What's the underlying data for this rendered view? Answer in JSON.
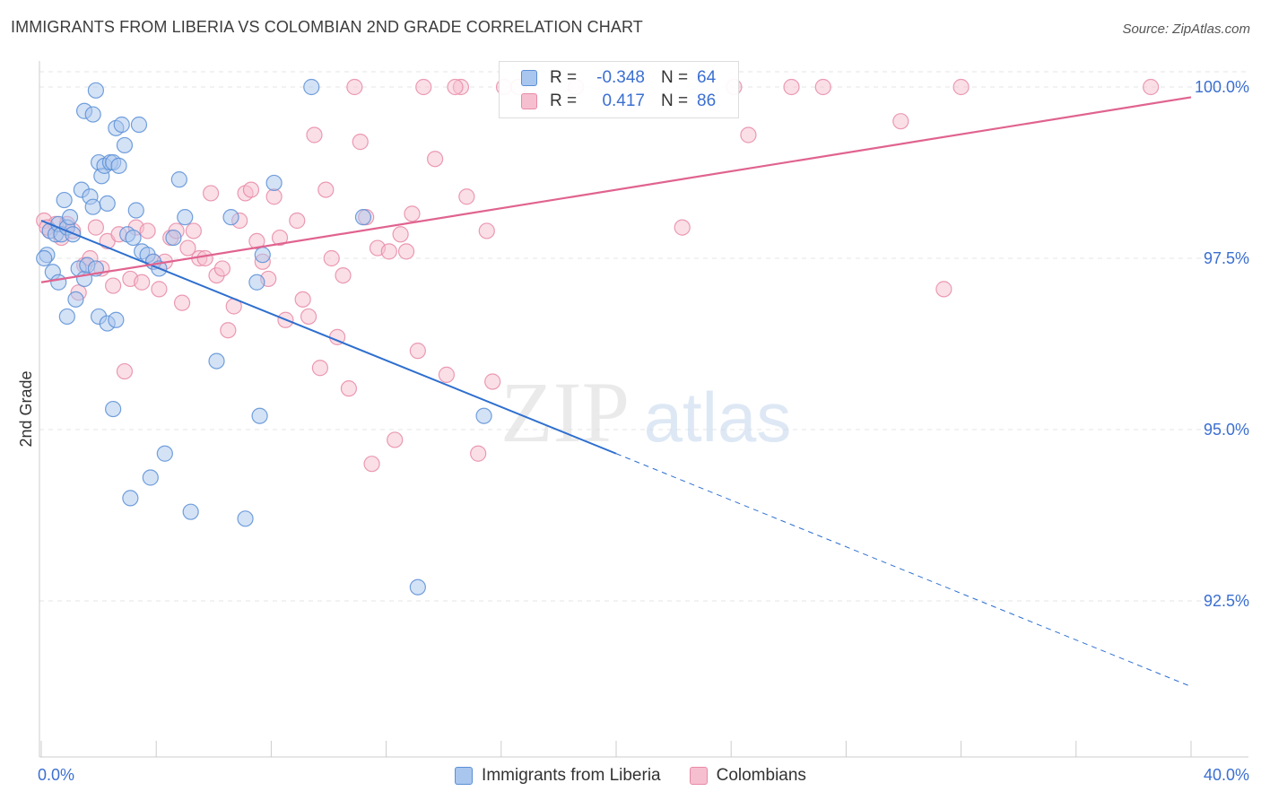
{
  "header": {
    "title": "IMMIGRANTS FROM LIBERIA VS COLOMBIAN 2ND GRADE CORRELATION CHART",
    "source": "Source: ZipAtlas.com"
  },
  "watermark": {
    "zip": "ZIP",
    "atlas": "atlas"
  },
  "colors": {
    "blue_fill": "#a9c6ee",
    "blue_stroke": "#5b8fd6",
    "blue_line": "#2e6fcf",
    "pink_fill": "#f6bfd0",
    "pink_stroke": "#e88aa6",
    "pink_line": "#e0638f",
    "axis_text": "#3b6fd1",
    "grid": "#e6e6e6"
  },
  "legend_top": {
    "rows": [
      {
        "r_label": "R =",
        "r_value": "-0.348",
        "n_label": "N =",
        "n_value": "64"
      },
      {
        "r_label": "R =",
        "r_value": "0.417",
        "n_label": "N =",
        "n_value": "86"
      }
    ]
  },
  "legend_bottom": {
    "items": [
      {
        "label": "Immigrants from Liberia"
      },
      {
        "label": "Colombians"
      }
    ]
  },
  "chart_data": {
    "type": "scatter",
    "title": "IMMIGRANTS FROM LIBERIA VS COLOMBIAN 2ND GRADE CORRELATION CHART",
    "xlabel": "",
    "ylabel": "2nd Grade",
    "xlim": [
      0,
      40
    ],
    "ylim": [
      90.0,
      100.4
    ],
    "x_tick_labels": [
      "0.0%",
      "40.0%"
    ],
    "y_ticks": [
      92.5,
      95.0,
      97.5,
      100.0
    ],
    "y_tick_labels": [
      "92.5%",
      "95.0%",
      "97.5%",
      "100.0%"
    ],
    "grid": "horizontal dashed",
    "legend_position": "top-center and bottom",
    "series": [
      {
        "name": "Immigrants from Liberia",
        "r": -0.348,
        "n": 64,
        "trend": {
          "x0": 0,
          "y0": 98.05,
          "x1": 20.0,
          "y1": 94.65,
          "dash_to_x": 40.0,
          "dash_to_y": 91.25
        },
        "points": [
          [
            0.3,
            97.9
          ],
          [
            0.2,
            97.55
          ],
          [
            0.4,
            97.3
          ],
          [
            0.5,
            97.85
          ],
          [
            0.6,
            98.0
          ],
          [
            0.7,
            97.85
          ],
          [
            0.8,
            98.35
          ],
          [
            0.9,
            97.95
          ],
          [
            1.0,
            98.1
          ],
          [
            1.1,
            97.85
          ],
          [
            0.6,
            97.15
          ],
          [
            0.9,
            96.65
          ],
          [
            1.2,
            96.9
          ],
          [
            1.3,
            97.35
          ],
          [
            1.4,
            98.5
          ],
          [
            1.5,
            97.2
          ],
          [
            1.6,
            97.4
          ],
          [
            1.7,
            98.4
          ],
          [
            1.8,
            98.25
          ],
          [
            1.9,
            97.35
          ],
          [
            1.5,
            99.65
          ],
          [
            1.8,
            99.6
          ],
          [
            1.9,
            99.95
          ],
          [
            2.0,
            98.9
          ],
          [
            2.1,
            98.7
          ],
          [
            2.2,
            98.85
          ],
          [
            2.3,
            98.3
          ],
          [
            2.4,
            98.9
          ],
          [
            2.5,
            98.9
          ],
          [
            2.6,
            99.4
          ],
          [
            2.7,
            98.85
          ],
          [
            2.8,
            99.45
          ],
          [
            2.9,
            99.15
          ],
          [
            3.0,
            97.85
          ],
          [
            3.2,
            97.8
          ],
          [
            3.3,
            98.2
          ],
          [
            3.4,
            99.45
          ],
          [
            3.5,
            97.6
          ],
          [
            3.7,
            97.55
          ],
          [
            3.9,
            97.45
          ],
          [
            4.1,
            97.35
          ],
          [
            4.6,
            97.8
          ],
          [
            4.8,
            98.65
          ],
          [
            5.0,
            98.1
          ],
          [
            2.0,
            96.65
          ],
          [
            2.3,
            96.55
          ],
          [
            2.6,
            96.6
          ],
          [
            2.5,
            95.3
          ],
          [
            3.1,
            94.0
          ],
          [
            3.8,
            94.3
          ],
          [
            4.3,
            94.65
          ],
          [
            5.2,
            93.8
          ],
          [
            6.1,
            96.0
          ],
          [
            6.6,
            98.1
          ],
          [
            7.1,
            93.7
          ],
          [
            7.5,
            97.15
          ],
          [
            7.6,
            95.2
          ],
          [
            7.7,
            97.55
          ],
          [
            8.1,
            98.6
          ],
          [
            9.4,
            100.0
          ],
          [
            11.2,
            98.1
          ],
          [
            13.1,
            92.7
          ],
          [
            15.4,
            95.2
          ],
          [
            0.1,
            97.5
          ]
        ]
      },
      {
        "name": "Colombians",
        "r": 0.417,
        "n": 86,
        "trend": {
          "x0": 0,
          "y0": 97.15,
          "x1": 40.0,
          "y1": 99.85
        },
        "points": [
          [
            0.1,
            98.05
          ],
          [
            0.3,
            97.9
          ],
          [
            0.5,
            98.0
          ],
          [
            0.7,
            97.8
          ],
          [
            0.9,
            98.0
          ],
          [
            1.1,
            97.9
          ],
          [
            1.3,
            97.0
          ],
          [
            1.5,
            97.4
          ],
          [
            1.7,
            97.5
          ],
          [
            1.9,
            97.95
          ],
          [
            2.1,
            97.35
          ],
          [
            2.3,
            97.75
          ],
          [
            2.5,
            97.1
          ],
          [
            2.7,
            97.85
          ],
          [
            2.9,
            95.85
          ],
          [
            3.1,
            97.2
          ],
          [
            3.3,
            97.95
          ],
          [
            3.5,
            97.15
          ],
          [
            3.7,
            97.9
          ],
          [
            3.9,
            97.45
          ],
          [
            4.1,
            97.05
          ],
          [
            4.3,
            97.45
          ],
          [
            4.5,
            97.8
          ],
          [
            4.7,
            97.9
          ],
          [
            4.9,
            96.85
          ],
          [
            5.1,
            97.65
          ],
          [
            5.3,
            97.9
          ],
          [
            5.5,
            97.5
          ],
          [
            5.7,
            97.5
          ],
          [
            5.9,
            98.45
          ],
          [
            6.1,
            97.25
          ],
          [
            6.3,
            97.35
          ],
          [
            6.5,
            96.45
          ],
          [
            6.7,
            96.8
          ],
          [
            6.9,
            98.05
          ],
          [
            7.1,
            98.45
          ],
          [
            7.3,
            98.5
          ],
          [
            7.5,
            97.75
          ],
          [
            7.7,
            97.45
          ],
          [
            7.9,
            97.2
          ],
          [
            8.1,
            98.4
          ],
          [
            8.3,
            97.8
          ],
          [
            8.5,
            96.6
          ],
          [
            8.9,
            98.05
          ],
          [
            9.1,
            96.9
          ],
          [
            9.3,
            96.65
          ],
          [
            9.5,
            99.3
          ],
          [
            9.7,
            95.9
          ],
          [
            9.9,
            98.5
          ],
          [
            10.1,
            97.5
          ],
          [
            10.3,
            96.35
          ],
          [
            10.5,
            97.25
          ],
          [
            10.7,
            95.6
          ],
          [
            10.9,
            100.0
          ],
          [
            11.1,
            99.2
          ],
          [
            11.3,
            98.1
          ],
          [
            11.5,
            94.5
          ],
          [
            11.7,
            97.65
          ],
          [
            12.1,
            97.6
          ],
          [
            12.3,
            94.85
          ],
          [
            12.5,
            97.85
          ],
          [
            12.7,
            97.6
          ],
          [
            12.9,
            98.15
          ],
          [
            13.1,
            96.15
          ],
          [
            13.3,
            100.0
          ],
          [
            13.7,
            98.95
          ],
          [
            14.1,
            95.8
          ],
          [
            14.6,
            100.0
          ],
          [
            14.8,
            98.4
          ],
          [
            15.2,
            94.65
          ],
          [
            15.5,
            97.9
          ],
          [
            15.7,
            95.7
          ],
          [
            16.1,
            100.0
          ],
          [
            16.6,
            100.0
          ],
          [
            18.6,
            100.0
          ],
          [
            22.3,
            97.95
          ],
          [
            24.1,
            100.0
          ],
          [
            24.6,
            99.3
          ],
          [
            26.1,
            100.0
          ],
          [
            27.2,
            100.0
          ],
          [
            29.9,
            99.5
          ],
          [
            31.4,
            97.05
          ],
          [
            32.0,
            100.0
          ],
          [
            38.6,
            100.0
          ],
          [
            0.2,
            97.95
          ],
          [
            14.4,
            100.0
          ]
        ]
      }
    ]
  }
}
